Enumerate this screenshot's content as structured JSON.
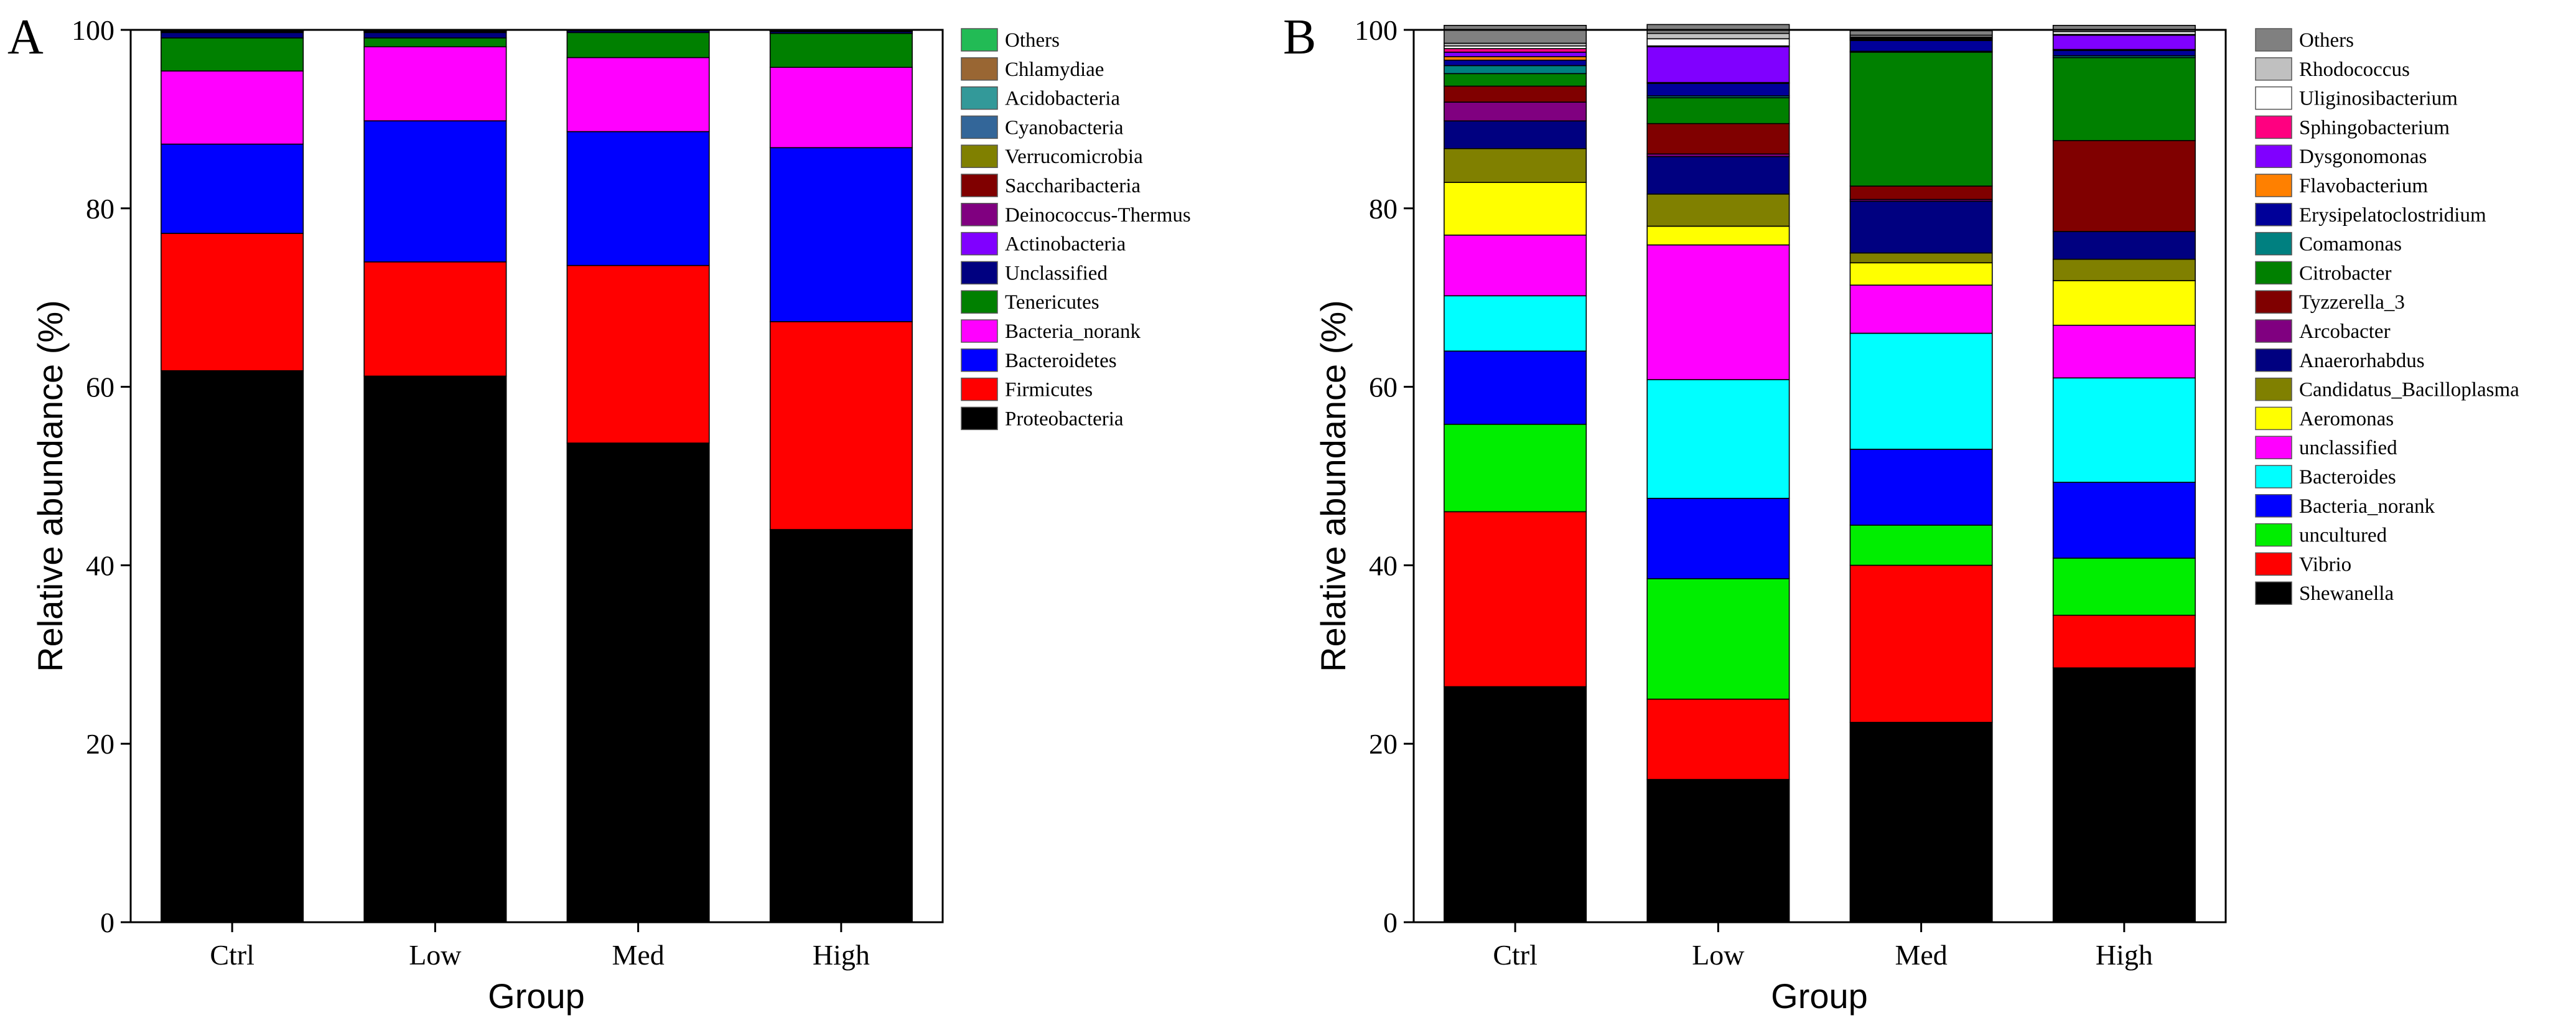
{
  "chart_data": [
    {
      "panel_label": "A",
      "type": "bar",
      "stacked": true,
      "xlabel": "Group",
      "ylabel": "Relative abundance (%)",
      "ylim": [
        0,
        100
      ],
      "yticks": [
        0,
        20,
        40,
        60,
        80,
        100
      ],
      "categories": [
        "Ctrl",
        "Low",
        "Med",
        "High"
      ],
      "legend_position": "right",
      "series": [
        {
          "name": "Proteobacteria",
          "color": "#000000",
          "values": [
            61.8,
            61.2,
            53.7,
            44.0
          ]
        },
        {
          "name": "Firmicutes",
          "color": "#ff0000",
          "values": [
            15.4,
            12.8,
            19.9,
            23.3
          ]
        },
        {
          "name": "Bacteroidetes",
          "color": "#0000ff",
          "values": [
            10.0,
            15.8,
            15.0,
            19.5
          ]
        },
        {
          "name": "Bacteria_norank",
          "color": "#ff00ff",
          "values": [
            8.2,
            8.3,
            8.3,
            9.0
          ]
        },
        {
          "name": "Tenericutes",
          "color": "#008000",
          "values": [
            3.7,
            1.0,
            2.8,
            3.8
          ]
        },
        {
          "name": "Unclassified",
          "color": "#000080",
          "values": [
            0.6,
            0.6,
            0.2,
            0.2
          ]
        },
        {
          "name": "Actinobacteria",
          "color": "#8000ff",
          "values": [
            0.1,
            0.1,
            0.05,
            0.05
          ]
        },
        {
          "name": "Deinococcus-Thermus",
          "color": "#800080",
          "values": [
            0.05,
            0.05,
            0.02,
            0.02
          ]
        },
        {
          "name": "Saccharibacteria",
          "color": "#800000",
          "values": [
            0.05,
            0.05,
            0.01,
            0.01
          ]
        },
        {
          "name": "Verrucomicrobia",
          "color": "#808000",
          "values": [
            0.03,
            0.03,
            0.01,
            0.01
          ]
        },
        {
          "name": "Cyanobacteria",
          "color": "#336699",
          "values": [
            0.03,
            0.03,
            0.01,
            0.01
          ]
        },
        {
          "name": "Acidobacteria",
          "color": "#339999",
          "values": [
            0.02,
            0.02,
            0.0,
            0.0
          ]
        },
        {
          "name": "Chlamydiae",
          "color": "#996633",
          "values": [
            0.02,
            0.02,
            0.0,
            0.0
          ]
        },
        {
          "name": "Others",
          "color": "#22bb55",
          "values": [
            0.0,
            0.0,
            0.0,
            0.0
          ]
        }
      ]
    },
    {
      "panel_label": "B",
      "type": "bar",
      "stacked": true,
      "xlabel": "Group",
      "ylabel": "Relative abundance (%)",
      "ylim": [
        0,
        100
      ],
      "yticks": [
        0,
        20,
        40,
        60,
        80,
        100
      ],
      "categories": [
        "Ctrl",
        "Low",
        "Med",
        "High"
      ],
      "legend_position": "right",
      "series": [
        {
          "name": "Shewanella",
          "color": "#000000",
          "values": [
            26.4,
            16.0,
            22.4,
            28.5
          ]
        },
        {
          "name": "Vibrio",
          "color": "#ff0000",
          "values": [
            19.6,
            9.0,
            17.6,
            5.9
          ]
        },
        {
          "name": "uncultured",
          "color": "#00ee00",
          "values": [
            9.8,
            13.5,
            4.5,
            6.4
          ]
        },
        {
          "name": "Bacteria_norank",
          "color": "#0000ff",
          "values": [
            8.2,
            9.0,
            8.5,
            8.5
          ]
        },
        {
          "name": "Bacteroides",
          "color": "#00ffff",
          "values": [
            6.2,
            13.3,
            13.0,
            11.7
          ]
        },
        {
          "name": "unclassified",
          "color": "#ff00ff",
          "values": [
            6.8,
            15.1,
            5.4,
            5.9
          ]
        },
        {
          "name": "Aeromonas",
          "color": "#ffff00",
          "values": [
            5.9,
            2.1,
            2.5,
            5.0
          ]
        },
        {
          "name": "Candidatus_Bacilloplasma",
          "color": "#808000",
          "values": [
            3.8,
            3.6,
            1.1,
            2.4
          ]
        },
        {
          "name": "Anaerorhabdus",
          "color": "#000080",
          "values": [
            3.1,
            4.2,
            5.8,
            3.1
          ]
        },
        {
          "name": "Arcobacter",
          "color": "#800080",
          "values": [
            2.1,
            0.3,
            0.2,
            0.0
          ]
        },
        {
          "name": "Tyzzerella_3",
          "color": "#800000",
          "values": [
            1.8,
            3.4,
            1.5,
            10.2
          ]
        },
        {
          "name": "Citrobacter",
          "color": "#008000",
          "values": [
            1.4,
            2.9,
            15.0,
            9.3
          ]
        },
        {
          "name": "Comamonas",
          "color": "#008080",
          "values": [
            0.9,
            0.2,
            0.1,
            0.2
          ]
        },
        {
          "name": "Erysipelatoclostridium",
          "color": "#000099",
          "values": [
            0.6,
            1.4,
            1.2,
            0.6
          ]
        },
        {
          "name": "Flavobacterium",
          "color": "#ff8000",
          "values": [
            0.4,
            0.1,
            0.1,
            0.1
          ]
        },
        {
          "name": "Dysgonomonas",
          "color": "#8000ff",
          "values": [
            0.5,
            4.0,
            0.1,
            1.6
          ]
        },
        {
          "name": "Sphingobacterium",
          "color": "#ff0080",
          "values": [
            0.4,
            0.1,
            0.1,
            0.1
          ]
        },
        {
          "name": "Uliginosibacterium",
          "color": "#ffffff",
          "values": [
            0.3,
            0.8,
            0.1,
            0.3
          ]
        },
        {
          "name": "Rhodococcus",
          "color": "#c0c0c0",
          "values": [
            0.3,
            0.6,
            0.2,
            0.2
          ]
        },
        {
          "name": "Others",
          "color": "#808080",
          "values": [
            2.0,
            1.0,
            0.5,
            0.5
          ]
        }
      ]
    }
  ]
}
